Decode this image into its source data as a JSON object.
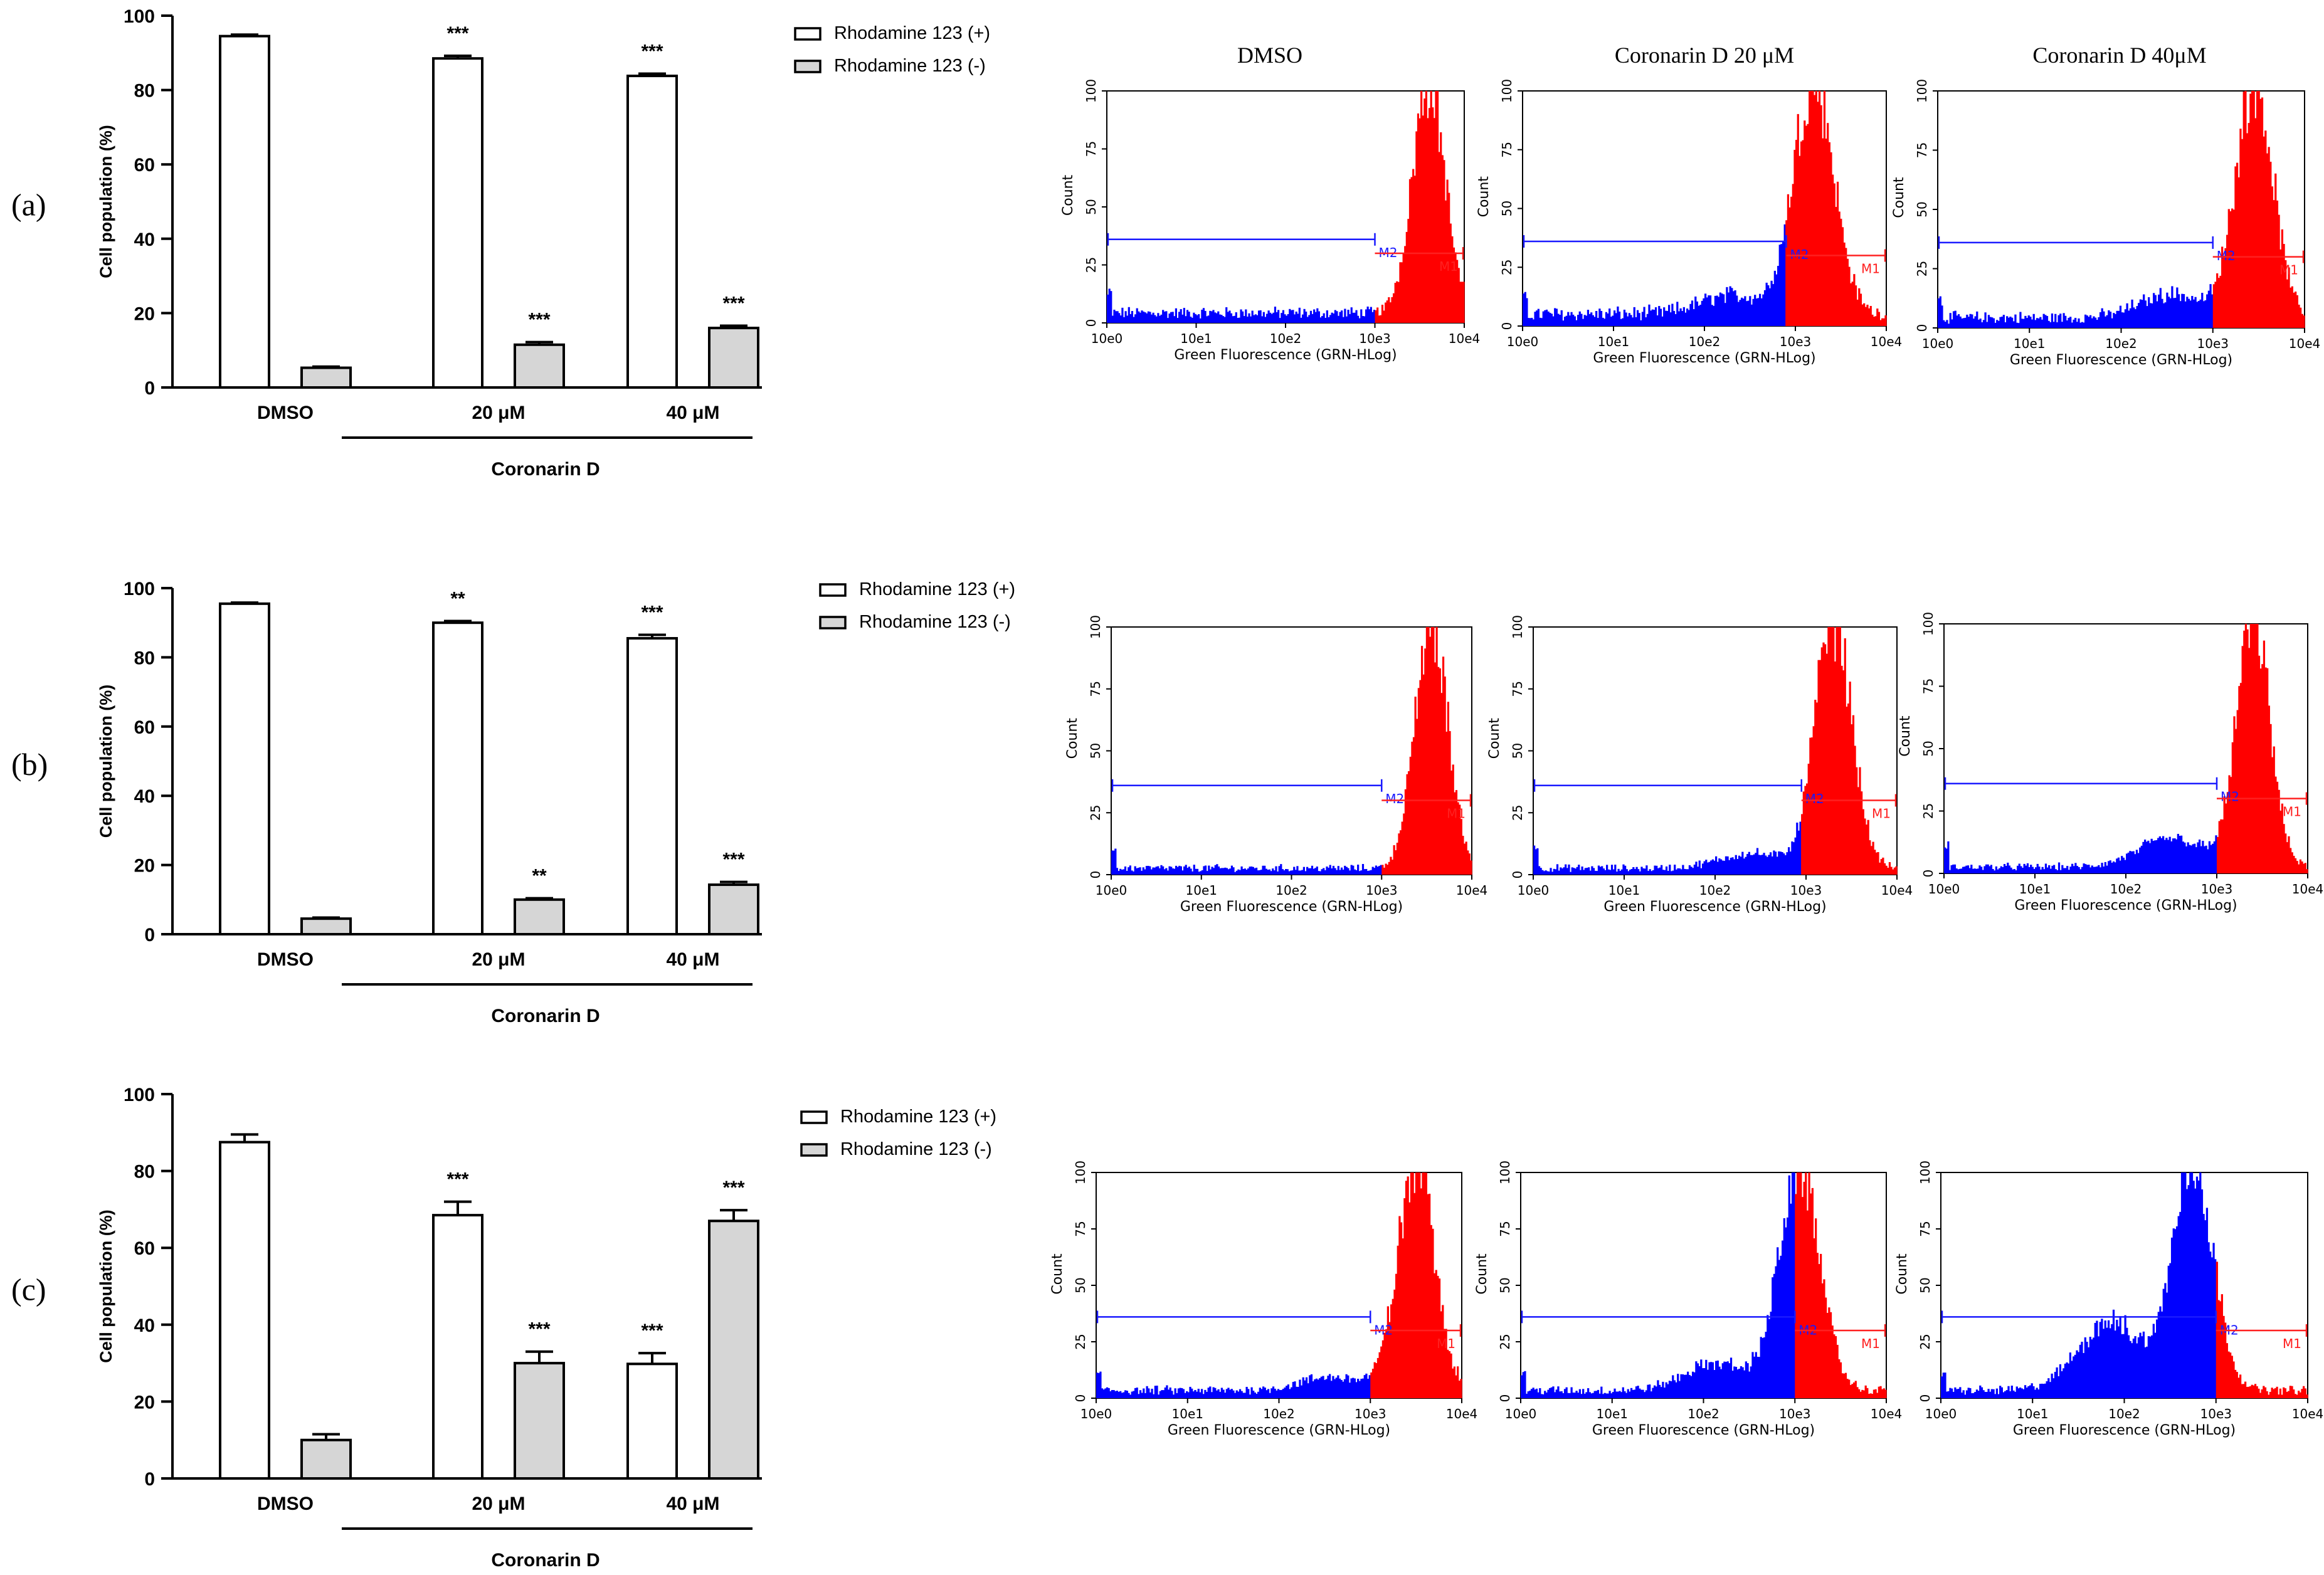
{
  "colors": {
    "bar_positive": "#ffffff",
    "bar_negative": "#d6d6d6",
    "axis": "#000000",
    "histogram_gated": "#ff0000",
    "histogram_ungated": "#0000ff",
    "marker_m2": "#1a1aff",
    "marker_m1": "#ff2020"
  },
  "column_titles": [
    "DMSO",
    "Coronarin D 20 μM",
    "Coronarin D 40μM"
  ],
  "chart_data": [
    {
      "type": "bar",
      "panel_label": "(a)",
      "ylabel": "Cell population (%)",
      "ylim": [
        0,
        100
      ],
      "yticks": [
        "0",
        "20",
        "40",
        "60",
        "80",
        "100"
      ],
      "categories": [
        "DMSO",
        "20 μM",
        "40 μM"
      ],
      "group_label": "Coronarin D",
      "series": [
        {
          "name": "Rhodamine 123 (+)",
          "values": [
            94.5,
            88.5,
            83.8
          ],
          "errors": [
            0.4,
            0.7,
            0.6
          ],
          "stars": [
            "",
            "***",
            "***"
          ]
        },
        {
          "name": "Rhodamine 123 (-)",
          "values": [
            5.3,
            11.5,
            16.0
          ],
          "errors": [
            0.3,
            0.7,
            0.6
          ],
          "stars": [
            "",
            "***",
            "***"
          ]
        }
      ]
    },
    {
      "type": "bar",
      "panel_label": "(b)",
      "ylabel": "Cell population (%)",
      "ylim": [
        0,
        100
      ],
      "yticks": [
        "0",
        "20",
        "40",
        "60",
        "80",
        "100"
      ],
      "categories": [
        "DMSO",
        "20 μM",
        "40 μM"
      ],
      "group_label": "Coronarin D",
      "series": [
        {
          "name": "Rhodamine 123 (+)",
          "values": [
            95.5,
            90.0,
            85.5
          ],
          "errors": [
            0.3,
            0.5,
            1.0
          ],
          "stars": [
            "",
            "**",
            "***"
          ]
        },
        {
          "name": "Rhodamine 123 (-)",
          "values": [
            4.5,
            10.0,
            14.3
          ],
          "errors": [
            0.3,
            0.4,
            0.8
          ],
          "stars": [
            "",
            "**",
            "***"
          ]
        }
      ]
    },
    {
      "type": "bar",
      "panel_label": "(c)",
      "ylabel": "Cell population (%)",
      "ylim": [
        0,
        100
      ],
      "yticks": [
        "0",
        "20",
        "40",
        "60",
        "80",
        "100"
      ],
      "categories": [
        "DMSO",
        "20 μM",
        "40 μM"
      ],
      "group_label": "Coronarin D",
      "series": [
        {
          "name": "Rhodamine 123 (+)",
          "values": [
            87.5,
            68.5,
            29.8
          ],
          "errors": [
            2.0,
            3.5,
            2.8
          ],
          "stars": [
            "",
            "***",
            "***"
          ]
        },
        {
          "name": "Rhodamine 123 (-)",
          "values": [
            10.0,
            30.0,
            67.0
          ],
          "errors": [
            1.5,
            3.0,
            2.8
          ],
          "stars": [
            "",
            "***",
            "***"
          ]
        }
      ]
    }
  ],
  "histograms": {
    "xlabel": "Green Fluorescence (GRN-HLog)",
    "ylabel": "Count",
    "xticks": [
      "10e0",
      "10e1",
      "10e2",
      "10e3",
      "10e4"
    ],
    "yticks": [
      "0",
      "25",
      "50",
      "75",
      "100"
    ],
    "gate_m2": "M2",
    "gate_m1": "M1",
    "rows": [
      [
        {
          "gate_split_log": 3.0,
          "peak_log": 3.6,
          "peak_sd": 0.18,
          "tail_level": 5,
          "low_bump": 0
        },
        {
          "gate_split_log": 2.9,
          "peak_log": 3.2,
          "peak_sd": 0.22,
          "tail_level": 6,
          "low_bump": 8
        },
        {
          "gate_split_log": 3.0,
          "peak_log": 3.45,
          "peak_sd": 0.2,
          "tail_level": 5,
          "low_bump": 10
        }
      ],
      [
        {
          "gate_split_log": 3.0,
          "peak_log": 3.55,
          "peak_sd": 0.18,
          "tail_level": 3,
          "low_bump": 0
        },
        {
          "gate_split_log": 2.95,
          "peak_log": 3.3,
          "peak_sd": 0.2,
          "tail_level": 3,
          "low_bump": 6
        },
        {
          "gate_split_log": 3.0,
          "peak_log": 3.4,
          "peak_sd": 0.18,
          "tail_level": 3,
          "low_bump": 12
        }
      ],
      [
        {
          "gate_split_log": 3.0,
          "peak_log": 3.5,
          "peak_sd": 0.2,
          "tail_level": 4,
          "low_bump": 6
        },
        {
          "gate_split_log": 3.0,
          "peak_log": 3.05,
          "peak_sd": 0.22,
          "tail_level": 4,
          "low_bump": 12
        },
        {
          "gate_split_log": 3.0,
          "peak_log": 2.75,
          "peak_sd": 0.22,
          "tail_level": 4,
          "low_bump": 30
        }
      ]
    ]
  }
}
